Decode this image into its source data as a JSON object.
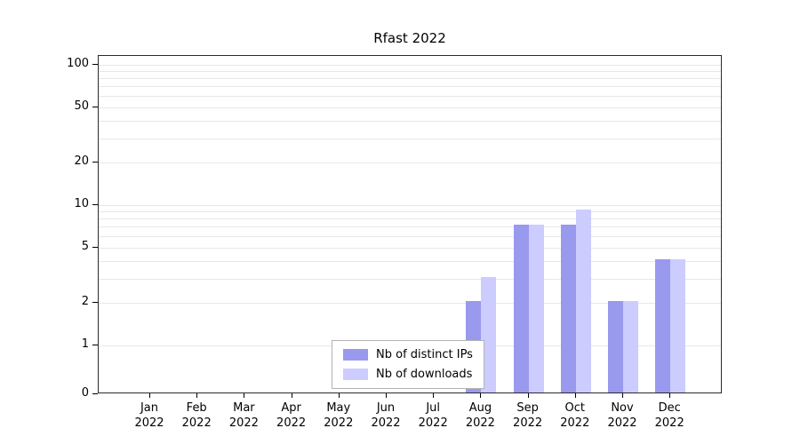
{
  "chart_data": {
    "type": "bar",
    "title": "Rfast 2022",
    "categories": [
      "Jan 2022",
      "Feb 2022",
      "Mar 2022",
      "Apr 2022",
      "May 2022",
      "Jun 2022",
      "Jul 2022",
      "Aug 2022",
      "Sep 2022",
      "Oct 2022",
      "Nov 2022",
      "Dec 2022"
    ],
    "series": [
      {
        "name": "Nb of distinct IPs",
        "color": "#9999ee",
        "values": [
          0,
          0,
          0,
          0,
          0,
          0,
          0,
          2,
          7,
          7,
          2,
          4
        ]
      },
      {
        "name": "Nb of downloads",
        "color": "#ccccff",
        "values": [
          0,
          0,
          0,
          0,
          0,
          0,
          0,
          3,
          7,
          9,
          2,
          4
        ]
      }
    ],
    "xlabel": "",
    "ylabel": "",
    "yscale": "log-with-zero-baseline",
    "ylim": [
      0,
      117
    ],
    "yticks": [
      0,
      1,
      2,
      5,
      10,
      20,
      50,
      100
    ],
    "minor_gridlines": [
      1,
      2,
      3,
      4,
      5,
      6,
      7,
      8,
      9,
      10,
      20,
      30,
      40,
      50,
      60,
      70,
      80,
      90,
      100
    ],
    "grid": "on",
    "legend_position": "inside-bottom-center",
    "colors": {
      "axis": "#2a2a2a",
      "gridline": "#e7e7e7",
      "background": "#ffffff",
      "text": "#000000"
    }
  }
}
